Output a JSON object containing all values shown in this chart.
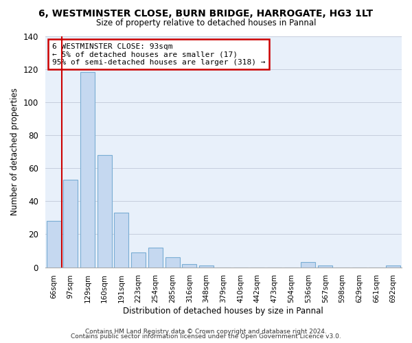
{
  "title": "6, WESTMINSTER CLOSE, BURN BRIDGE, HARROGATE, HG3 1LT",
  "subtitle": "Size of property relative to detached houses in Pannal",
  "xlabel": "Distribution of detached houses by size in Pannal",
  "ylabel": "Number of detached properties",
  "bar_labels": [
    "66sqm",
    "97sqm",
    "129sqm",
    "160sqm",
    "191sqm",
    "223sqm",
    "254sqm",
    "285sqm",
    "316sqm",
    "348sqm",
    "379sqm",
    "410sqm",
    "442sqm",
    "473sqm",
    "504sqm",
    "536sqm",
    "567sqm",
    "598sqm",
    "629sqm",
    "661sqm",
    "692sqm"
  ],
  "bar_values": [
    28,
    53,
    118,
    68,
    33,
    9,
    12,
    6,
    2,
    1,
    0,
    0,
    0,
    0,
    0,
    3,
    1,
    0,
    0,
    0,
    1
  ],
  "bar_color": "#c5d8f0",
  "bar_edge_color": "#7aadd4",
  "annotation_title": "6 WESTMINSTER CLOSE: 93sqm",
  "annotation_line1": "← 5% of detached houses are smaller (17)",
  "annotation_line2": "95% of semi-detached houses are larger (318) →",
  "annotation_box_color": "#ffffff",
  "annotation_border_color": "#cc0000",
  "ylim": [
    0,
    140
  ],
  "yticks": [
    0,
    20,
    40,
    60,
    80,
    100,
    120,
    140
  ],
  "footer1": "Contains HM Land Registry data © Crown copyright and database right 2024.",
  "footer2": "Contains public sector information licensed under the Open Government Licence v3.0.",
  "bg_color": "#ffffff",
  "plot_bg_color": "#e8f0fa",
  "grid_color": "#c0c8d8",
  "red_line_color": "#cc0000",
  "red_line_x": 0.5
}
